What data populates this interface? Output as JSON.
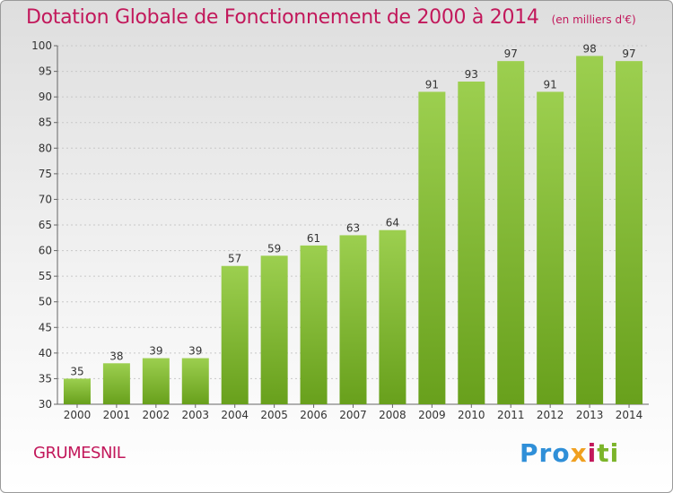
{
  "header": {
    "title": "Dotation Globale de Fonctionnement de 2000 à 2014",
    "subtitle": "(en milliers d'€)"
  },
  "footer": {
    "commune": "GRUMESNIL",
    "logo_parts": [
      "Pro",
      "x",
      "i",
      "ti"
    ]
  },
  "colors": {
    "accent": "#c2185b",
    "bar_light": "#9ccf4f",
    "bar_dark": "#68a01c"
  },
  "chart_data": {
    "type": "bar",
    "categories": [
      "2000",
      "2001",
      "2002",
      "2003",
      "2004",
      "2005",
      "2006",
      "2007",
      "2008",
      "2009",
      "2010",
      "2011",
      "2012",
      "2013",
      "2014"
    ],
    "values": [
      35,
      38,
      39,
      39,
      57,
      59,
      61,
      63,
      64,
      91,
      93,
      97,
      91,
      98,
      97
    ],
    "title": "Dotation Globale de Fonctionnement de 2000 à 2014",
    "subtitle": "(en milliers d'€)",
    "xlabel": "",
    "ylabel": "",
    "ylim": [
      30,
      100
    ],
    "yticks": [
      30,
      35,
      40,
      45,
      50,
      55,
      60,
      65,
      70,
      75,
      80,
      85,
      90,
      95,
      100
    ],
    "grid": true,
    "data_labels": true
  }
}
